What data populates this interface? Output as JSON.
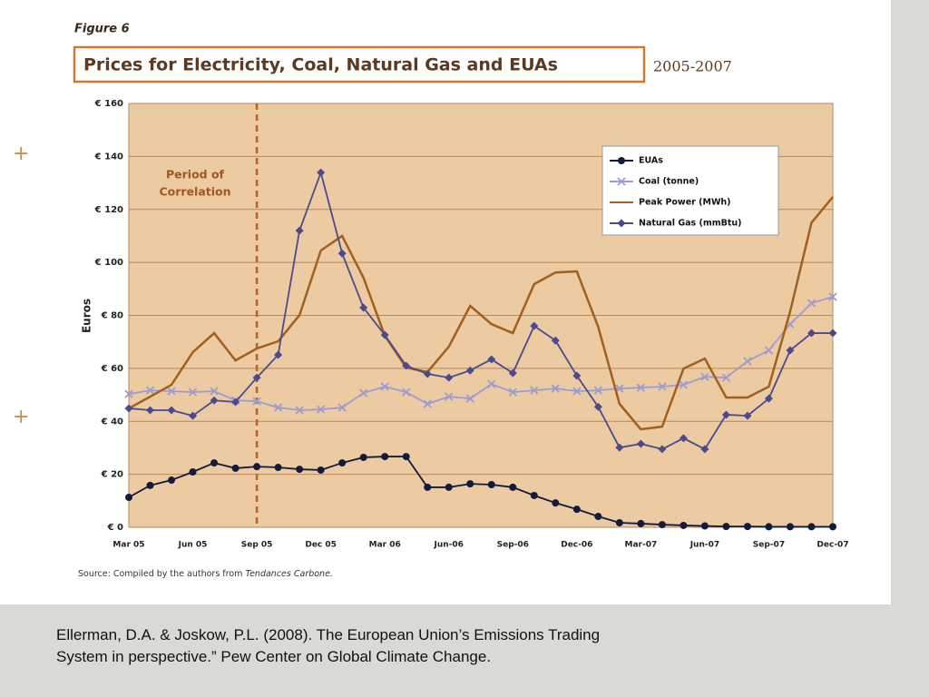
{
  "figure_label": "Figure 6",
  "source": "Source: Compiled by the authors from",
  "source_italic": "Tendances Carbone.",
  "citation": [
    "Ellerman, D.A. & Joskow, P.L. (2008). The European Union’s Emissions Trading",
    "System in perspective.” Pew Center on Global Climate Change."
  ],
  "chart_data": {
    "type": "line",
    "title": "Prices for Electricity, Coal, Natural Gas and EUAs",
    "subtitle": "2005-2007",
    "ylabel": "Euros",
    "annotation": [
      "Period of",
      "Correlation"
    ],
    "annotation_at": "Sep 05",
    "categories": [
      "Mar 05",
      null,
      null,
      "Jun 05",
      null,
      null,
      "Sep 05",
      null,
      null,
      "Dec 05",
      null,
      null,
      "Mar 06",
      null,
      null,
      "Jun-06",
      null,
      null,
      "Sep-06",
      null,
      null,
      "Dec-06",
      null,
      null,
      "Mar-07",
      null,
      null,
      "Jun-07",
      null,
      null,
      "Sep-07",
      null,
      null,
      "Dec-07"
    ],
    "ylim": [
      0,
      160
    ],
    "yticks": [
      {
        "value": 0,
        "label": "€ 0"
      },
      {
        "value": 20,
        "label": "€ 20"
      },
      {
        "value": 40,
        "label": "€ 40"
      },
      {
        "value": 60,
        "label": "€ 60"
      },
      {
        "value": 80,
        "label": "€ 80"
      },
      {
        "value": 100,
        "label": "€ 100"
      },
      {
        "value": 120,
        "label": "€ 120"
      },
      {
        "value": 140,
        "label": "€ 140"
      },
      {
        "value": 160,
        "label": "€ 160"
      }
    ],
    "grid": true,
    "legend": "upper right",
    "series": [
      {
        "name": "EUAs",
        "color": "#141a3c",
        "marker": "circle",
        "values": [
          11.3,
          15.8,
          17.8,
          20.9,
          24.3,
          22.3,
          22.9,
          22.6,
          21.9,
          21.6,
          24.3,
          26.4,
          26.7,
          26.7,
          15.1,
          15.1,
          16.4,
          16.1,
          15.1,
          12.0,
          9.2,
          6.8,
          4.1,
          1.7,
          1.4,
          1.0,
          0.7,
          0.5,
          0.3,
          0.3,
          0.2,
          0.2,
          0.2,
          0.2
        ]
      },
      {
        "name": "Coal (tonne)",
        "color": "#9a9cd2",
        "marker": "x",
        "values": [
          50.3,
          51.7,
          51.4,
          51.0,
          51.4,
          47.9,
          47.6,
          45.2,
          44.2,
          44.5,
          45.2,
          50.7,
          53.1,
          51.0,
          46.6,
          49.3,
          48.6,
          54.1,
          51.0,
          51.7,
          52.4,
          51.4,
          51.7,
          52.4,
          52.7,
          53.1,
          53.8,
          56.8,
          56.5,
          62.7,
          66.8,
          76.7,
          84.6,
          87.0
        ]
      },
      {
        "name": "Peak Power (MWh)",
        "color": "#a2601e",
        "marker": "none",
        "values": [
          44.9,
          49.3,
          53.8,
          66.1,
          73.3,
          63.0,
          67.5,
          70.2,
          80.1,
          104.5,
          110.0,
          94.2,
          72.3,
          60.3,
          58.6,
          68.2,
          83.6,
          76.7,
          73.3,
          91.8,
          96.2,
          96.6,
          75.7,
          46.6,
          37.0,
          38.0,
          59.9,
          63.7,
          49.0,
          49.0,
          53.1,
          81.5,
          115.0,
          124.7
        ]
      },
      {
        "name": "Natural Gas (mmBtu)",
        "color": "#4a4b8c",
        "marker": "diamond",
        "values": [
          44.9,
          44.2,
          44.2,
          42.1,
          47.9,
          47.3,
          56.5,
          65.1,
          112.0,
          133.9,
          103.4,
          82.9,
          72.6,
          61.0,
          57.9,
          56.5,
          59.2,
          63.4,
          58.2,
          76.0,
          70.5,
          57.2,
          45.5,
          30.1,
          31.5,
          29.5,
          33.6,
          29.5,
          42.5,
          42.1,
          48.6,
          66.8,
          73.3,
          73.3
        ]
      }
    ]
  }
}
